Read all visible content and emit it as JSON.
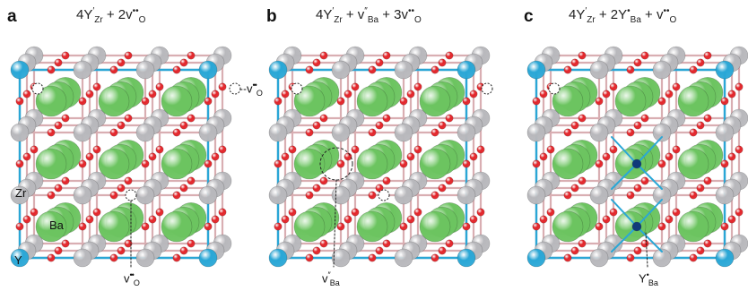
{
  "panels": [
    {
      "letter": "a",
      "formula": {
        "c1": "4Y",
        "s1": "′",
        "b1": "Zr",
        "op1": " + 2v",
        "s2": "••",
        "b2": "O",
        "c2": "",
        "s3": "",
        "b3": "",
        "op2": "",
        "s4": "",
        "b4": ""
      },
      "defects": [
        {
          "main": "v",
          "sup": "••",
          "sub": "O"
        },
        {
          "main": "v",
          "sup": "••",
          "sub": "O"
        }
      ]
    },
    {
      "letter": "b",
      "formula": {
        "c1": "4Y",
        "s1": "′",
        "b1": "Zr",
        "op1": " + v",
        "s2": "″",
        "b2": "Ba",
        "c2": " + 3v",
        "s3": "••",
        "b3": "O",
        "op2": "",
        "s4": "",
        "b4": ""
      },
      "defects": [
        {
          "main": "v",
          "sup": "″",
          "sub": "Ba"
        }
      ]
    },
    {
      "letter": "c",
      "formula": {
        "c1": "4Y",
        "s1": "′",
        "b1": "Zr",
        "op1": " + 2Y",
        "s2": "•",
        "b2": "Ba",
        "c2": " + v",
        "s3": "••",
        "b3": "O",
        "op2": "",
        "s4": "",
        "b4": ""
      },
      "defects": [
        {
          "main": "Y",
          "sup": "•",
          "sub": "Ba"
        }
      ]
    }
  ],
  "atom_labels": {
    "zr": "Zr",
    "ba": "Ba",
    "y": "Y"
  },
  "colors": {
    "ba": "#6cc460",
    "zr": "#b8b8bc",
    "y": "#2aa7d6",
    "o": "#e3262b",
    "bond": "#d9aeb2"
  }
}
